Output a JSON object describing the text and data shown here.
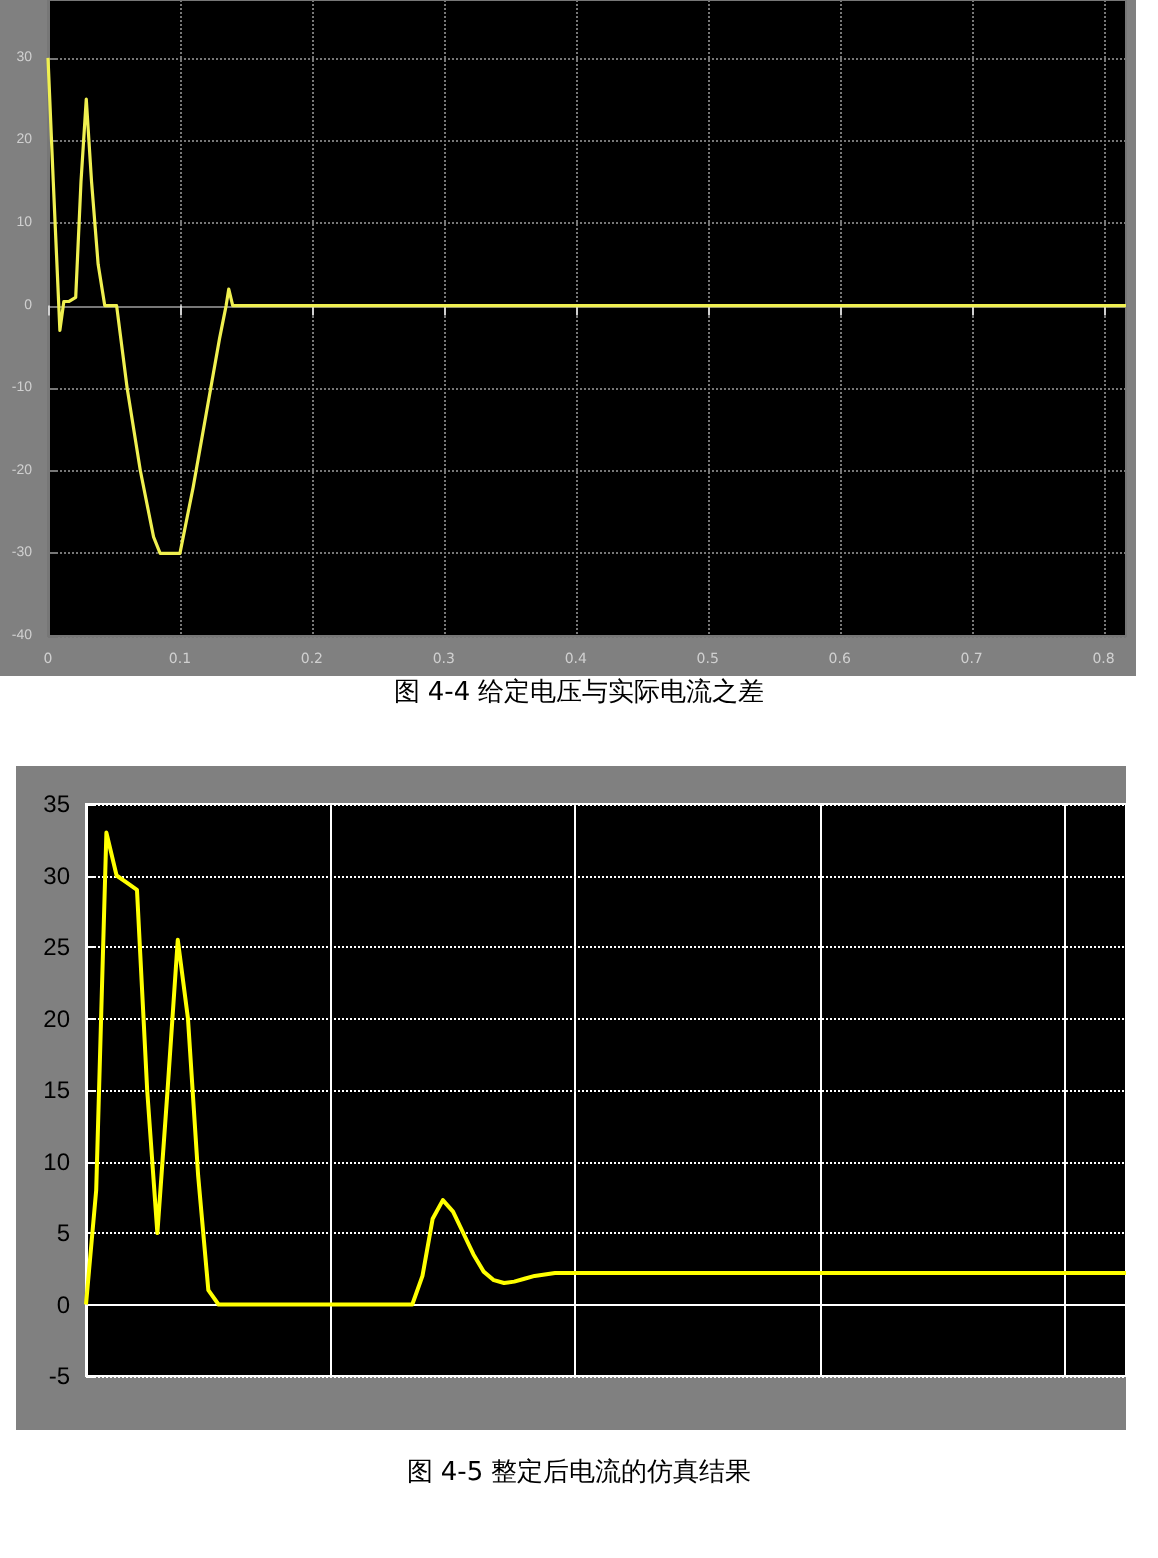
{
  "chart_data": [
    {
      "type": "line",
      "title": "图 4-4 给定电压与实际电流之差",
      "xlim": [
        0,
        0.817
      ],
      "xticks": [
        0,
        0.1,
        0.2,
        0.3,
        0.4,
        0.5,
        0.6,
        0.7,
        0.8
      ],
      "ylim": [
        -40,
        37
      ],
      "yticks": [
        -40,
        -30,
        -20,
        -10,
        0,
        10,
        20,
        30
      ],
      "grid": true,
      "marker": "none",
      "line_style": "solid",
      "series": [
        {
          "color": "#f0f050",
          "x": [
            0,
            0.004,
            0.009,
            0.012,
            0.016,
            0.021,
            0.025,
            0.029,
            0.033,
            0.038,
            0.043,
            0.052,
            0.06,
            0.07,
            0.08,
            0.085,
            0.1,
            0.11,
            0.12,
            0.13,
            0.135,
            0.137,
            0.14,
            0.2,
            0.4,
            0.6,
            0.817
          ],
          "values": [
            30,
            15,
            -3,
            0.5,
            0.5,
            1,
            15,
            25,
            15,
            5,
            0,
            0,
            -10,
            -20,
            -28,
            -30,
            -30,
            -22,
            -13,
            -4,
            0,
            2,
            0,
            0,
            0,
            0,
            0
          ]
        }
      ]
    },
    {
      "type": "line",
      "title": "图 4-5 整定后电流的仿真结果",
      "categories": [
        null,
        null,
        null,
        null,
        null,
        null,
        null,
        null,
        null,
        null,
        null,
        null,
        null,
        null,
        null,
        null,
        null,
        null,
        null,
        null,
        null,
        null,
        null,
        null,
        null,
        null,
        null,
        null,
        null,
        null,
        null,
        null,
        null,
        null,
        null,
        null,
        null,
        null,
        null,
        null,
        null,
        null,
        null,
        null,
        null,
        null,
        null,
        null,
        null,
        null,
        null,
        null,
        null,
        null,
        null,
        null,
        null,
        null,
        null,
        null,
        null,
        null,
        null,
        null,
        null,
        null,
        null,
        null,
        null,
        null,
        null,
        null,
        null,
        null,
        null,
        null,
        null,
        null,
        null,
        null,
        null,
        null,
        null,
        null,
        null,
        null,
        null,
        null,
        null,
        null,
        null,
        null,
        null,
        null,
        null,
        null,
        null,
        null,
        null,
        null,
        null,
        null,
        null
      ],
      "ylim": [
        -5,
        35
      ],
      "yticks": [
        -5,
        0,
        5,
        10,
        15,
        20,
        25,
        30,
        35
      ],
      "tick_labels": "y",
      "grid": true,
      "marker": "none",
      "line_style": "solid",
      "series": [
        {
          "color": "#ffff00",
          "values": [
            0,
            8,
            33,
            30,
            29.5,
            29,
            15,
            5,
            15,
            25.5,
            20,
            9,
            1,
            0,
            0,
            0,
            0,
            0,
            0,
            0,
            0,
            0,
            0,
            0,
            0,
            0,
            0,
            0,
            0,
            0,
            0,
            0,
            0,
            2,
            6,
            7.3,
            6.5,
            5,
            3.5,
            2.3,
            1.7,
            1.5,
            1.6,
            1.8,
            2,
            2.1,
            2.2,
            2.2,
            2.2,
            2.2,
            2.2,
            2.2,
            2.2,
            2.2,
            2.2,
            2.2,
            2.2,
            2.2,
            2.2,
            2.2,
            2.2,
            2.2,
            2.2,
            2.2,
            2.2,
            2.2,
            2.2,
            2.2,
            2.2,
            2.2,
            2.2,
            2.2,
            2.2,
            2.2,
            2.2,
            2.2,
            2.2,
            2.2,
            2.2,
            2.2,
            2.2,
            2.2,
            2.2,
            2.2,
            2.2,
            2.2,
            2.2,
            2.2,
            2.2,
            2.2,
            2.2,
            2.2,
            2.2,
            2.2,
            2.2,
            2.2,
            2.2,
            2.2,
            2.2,
            2.2,
            2.2,
            2.2,
            2.2
          ]
        }
      ]
    }
  ]
}
